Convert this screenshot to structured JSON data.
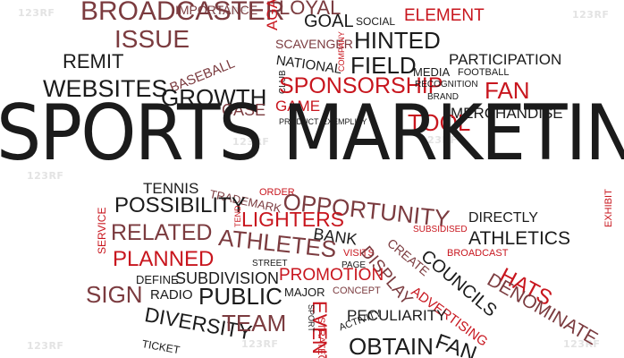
{
  "image": {
    "watermark_text": "123RF",
    "words": {
      "sports_marketing": "SPORTS MARKETING",
      "broadcaster": "BROADCASTER",
      "issue": "ISSUE",
      "importance": "IMPORTANCE",
      "again": "AGAIN",
      "loyal": "LOYAL",
      "goal": "GOAL",
      "social": "SOCIAL",
      "element": "ELEMENT",
      "hinted": "HINTED",
      "participation": "PARTICIPATION",
      "remit": "REMIT",
      "baseball": "BASEBALL",
      "scavenger": "SCAVENGER",
      "company": "COMPANY",
      "national": "NATIONAL",
      "field": "FIELD",
      "media": "MEDIA",
      "football": "FOOTBALL",
      "websites": "WEBSITES",
      "growth": "GROWTH",
      "club": "CLUB",
      "sponsorship": "SPONSORSHIP",
      "recognition": "RECOGNITION",
      "fan": "FAN",
      "brand": "BRAND",
      "game": "GAME",
      "case": "CASE",
      "merchandise": "MERCHANDISE",
      "product": "PRODUCT",
      "exemplify": "EXEMPLIFY",
      "tool": "TOOL",
      "tennis": "TENNIS",
      "trademark": "TRADEMARK",
      "order": "ORDER",
      "opportunity": "OPPORTUNITY",
      "possibility": "POSSIBILITY",
      "tend": "TEND",
      "lighters": "LIGHTERS",
      "directly": "DIRECTLY",
      "exhibit": "EXHIBIT",
      "service": "SERVICE",
      "related": "RELATED",
      "athletes": "ATHLETES",
      "bank": "BANK",
      "subsidised": "SUBSIDISED",
      "athletics": "ATHLETICS",
      "visits": "VISITS",
      "planned": "PLANNED",
      "street": "STREET",
      "display": "DISPLAY",
      "create": "CREATE",
      "broadcast": "BROADCAST",
      "define": "DEFINE",
      "subdivision": "SUBDIVISION",
      "promotion": "PROMOTION",
      "page": "PAGE",
      "councils": "COUNCILS",
      "hats": "HATS",
      "sign": "SIGN",
      "radio": "RADIO",
      "public": "PUBLIC",
      "major": "MAJOR",
      "concept": "CONCEPT",
      "denominate": "DENOMINATE",
      "diversity": "DIVERSITY",
      "event": "EVENT",
      "sport": "SPORT",
      "peculiarity": "PECULIARITY",
      "advertising": "ADVERTISING",
      "team": "TEAM",
      "activity": "ACTIVITY",
      "ticket": "TICKET",
      "strategy": "STRATEGY",
      "obtain": "OBTAIN"
    }
  }
}
